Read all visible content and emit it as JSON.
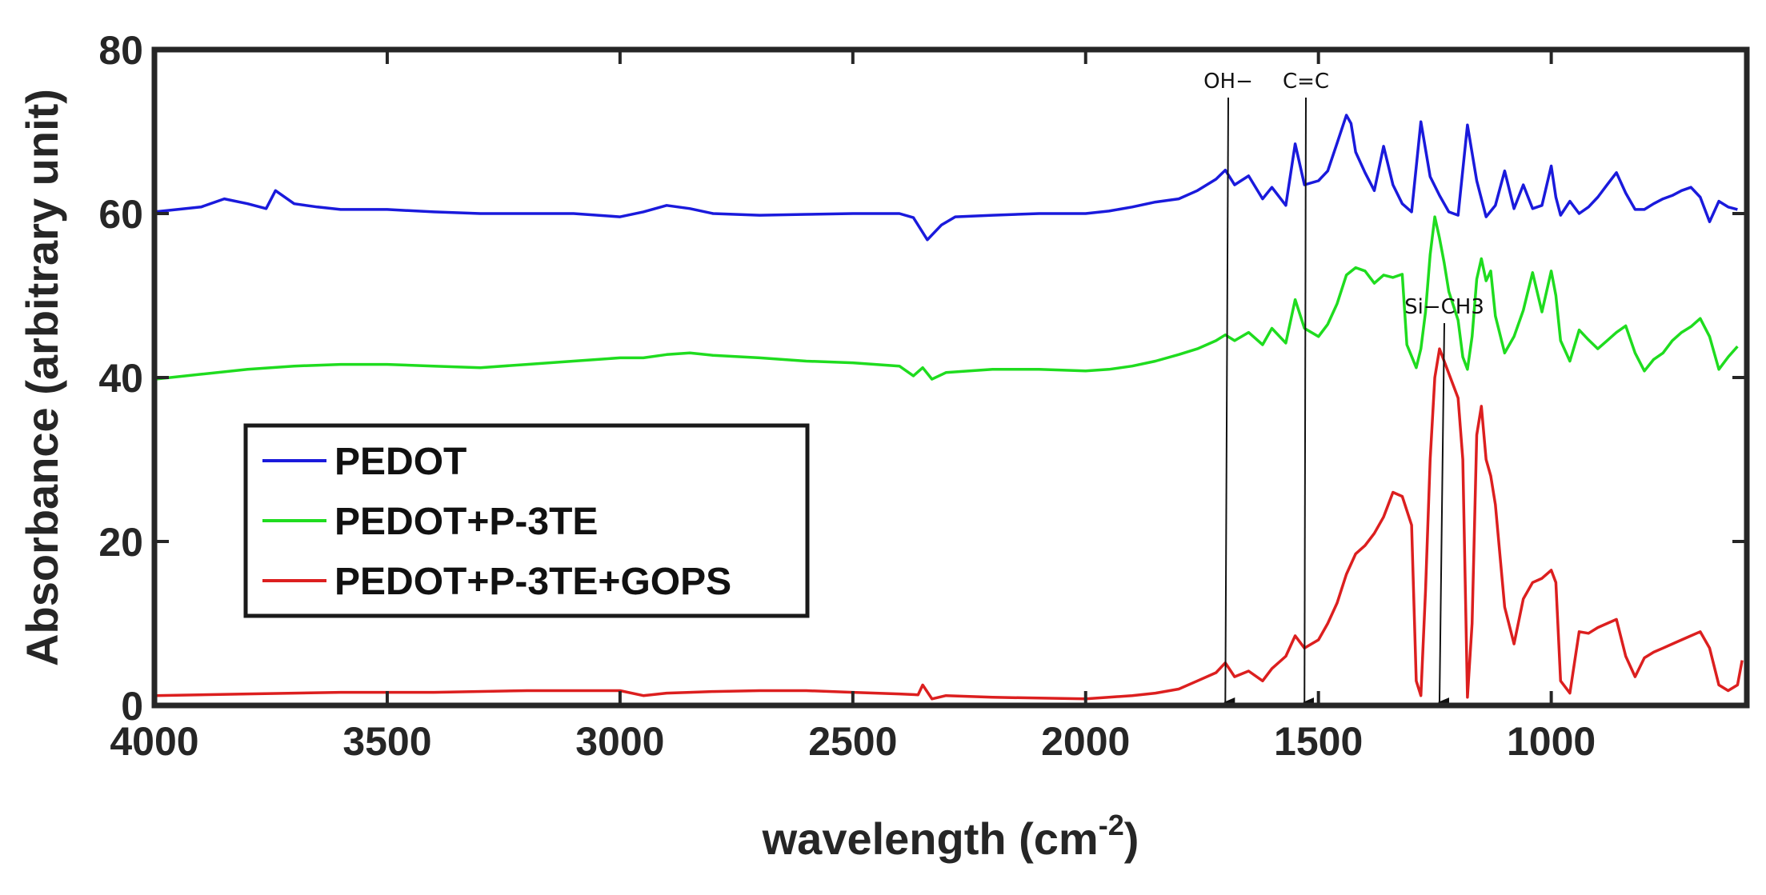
{
  "chart_data": {
    "type": "line",
    "title": "",
    "xlabel": {
      "main": "wavelength (cm",
      "sup": "-2",
      "close": ")"
    },
    "ylabel": "Absorbance (arbitrary unit)",
    "xlim": [
      4000,
      580
    ],
    "ylim": [
      0,
      80
    ],
    "x_reversed": true,
    "grid": false,
    "legend_position": "left",
    "x_ticks": [
      4000,
      3500,
      3000,
      2500,
      2000,
      1500,
      1000
    ],
    "x_tick_labels": [
      "4000",
      "3500",
      "3000",
      "2500",
      "2000",
      "1500",
      "1000"
    ],
    "y_ticks": [
      0,
      20,
      40,
      60,
      80
    ],
    "y_tick_labels": [
      "0",
      "20",
      "40",
      "60",
      "80"
    ],
    "series": [
      {
        "name": "PEDOT",
        "color": "#1a1adc",
        "x": [
          4000,
          3900,
          3850,
          3800,
          3760,
          3740,
          3700,
          3650,
          3600,
          3500,
          3400,
          3300,
          3200,
          3100,
          3000,
          2950,
          2900,
          2850,
          2800,
          2700,
          2600,
          2500,
          2400,
          2370,
          2340,
          2310,
          2280,
          2200,
          2100,
          2000,
          1950,
          1900,
          1850,
          1800,
          1760,
          1720,
          1700,
          1680,
          1650,
          1620,
          1600,
          1570,
          1550,
          1530,
          1500,
          1480,
          1460,
          1440,
          1430,
          1420,
          1400,
          1380,
          1360,
          1340,
          1320,
          1300,
          1280,
          1260,
          1240,
          1220,
          1200,
          1180,
          1160,
          1140,
          1120,
          1100,
          1080,
          1060,
          1040,
          1020,
          1000,
          990,
          980,
          960,
          940,
          920,
          900,
          880,
          860,
          840,
          820,
          800,
          780,
          760,
          740,
          720,
          700,
          680,
          660,
          640,
          620,
          600
        ],
        "y": [
          60.2,
          60.8,
          61.8,
          61.2,
          60.6,
          62.8,
          61.2,
          60.8,
          60.5,
          60.5,
          60.2,
          60.0,
          60.0,
          60.0,
          59.6,
          60.2,
          61.0,
          60.6,
          60.0,
          59.8,
          59.9,
          60.0,
          60.0,
          59.5,
          56.8,
          58.6,
          59.6,
          59.8,
          60.0,
          60.0,
          60.3,
          60.8,
          61.4,
          61.8,
          62.8,
          64.2,
          65.3,
          63.5,
          64.6,
          61.8,
          63.2,
          61.0,
          68.5,
          63.5,
          64.0,
          65.2,
          68.6,
          72.0,
          71.0,
          67.5,
          65.0,
          62.8,
          68.2,
          63.5,
          61.2,
          60.2,
          71.2,
          64.5,
          62.2,
          60.2,
          59.8,
          70.8,
          64.0,
          59.6,
          61.0,
          65.2,
          60.6,
          63.5,
          60.6,
          61.0,
          65.8,
          62.0,
          59.8,
          61.5,
          60.0,
          60.8,
          62.0,
          63.5,
          65.0,
          62.5,
          60.5,
          60.5,
          61.2,
          61.8,
          62.2,
          62.8,
          63.2,
          62.0,
          59.0,
          61.5,
          60.8,
          60.5
        ]
      },
      {
        "name": "PEDOT+P-3TE",
        "color": "#1fdc1f",
        "x": [
          4000,
          3900,
          3800,
          3700,
          3600,
          3500,
          3400,
          3300,
          3200,
          3100,
          3000,
          2950,
          2900,
          2850,
          2800,
          2700,
          2600,
          2500,
          2400,
          2370,
          2350,
          2330,
          2300,
          2200,
          2100,
          2000,
          1950,
          1900,
          1850,
          1800,
          1760,
          1720,
          1700,
          1680,
          1650,
          1620,
          1600,
          1570,
          1550,
          1530,
          1500,
          1480,
          1460,
          1440,
          1420,
          1400,
          1380,
          1360,
          1340,
          1320,
          1310,
          1290,
          1280,
          1270,
          1260,
          1250,
          1240,
          1230,
          1220,
          1200,
          1190,
          1180,
          1170,
          1160,
          1150,
          1140,
          1130,
          1120,
          1100,
          1080,
          1060,
          1040,
          1020,
          1000,
          990,
          980,
          960,
          940,
          920,
          900,
          880,
          860,
          840,
          820,
          800,
          780,
          760,
          740,
          720,
          700,
          680,
          660,
          640,
          620,
          600
        ],
        "y": [
          39.8,
          40.4,
          41.0,
          41.4,
          41.6,
          41.6,
          41.4,
          41.2,
          41.6,
          42.0,
          42.4,
          42.4,
          42.8,
          43.0,
          42.7,
          42.4,
          42.0,
          41.8,
          41.4,
          40.2,
          41.2,
          39.8,
          40.6,
          41.0,
          41.0,
          40.8,
          41.0,
          41.4,
          42.0,
          42.8,
          43.5,
          44.5,
          45.2,
          44.5,
          45.5,
          44.0,
          46.0,
          44.2,
          49.5,
          46.0,
          45.0,
          46.5,
          49.0,
          52.5,
          53.4,
          53.0,
          51.5,
          52.5,
          52.2,
          52.6,
          44.0,
          41.2,
          43.5,
          48.0,
          55.0,
          59.6,
          57.0,
          54.0,
          50.5,
          47.0,
          42.5,
          41.0,
          45.0,
          52.0,
          54.5,
          51.8,
          53.0,
          47.5,
          43.0,
          45.0,
          48.2,
          52.8,
          48.0,
          53.0,
          50.0,
          44.5,
          42.0,
          45.8,
          44.6,
          43.5,
          44.5,
          45.5,
          46.3,
          43.0,
          40.8,
          42.2,
          43.0,
          44.5,
          45.5,
          46.2,
          47.2,
          45.0,
          41.0,
          42.5,
          43.8
        ]
      },
      {
        "name": "PEDOT+P-3TE+GOPS",
        "color": "#dc1f1f",
        "x": [
          4000,
          3800,
          3600,
          3400,
          3200,
          3000,
          2950,
          2900,
          2850,
          2800,
          2700,
          2600,
          2500,
          2400,
          2360,
          2350,
          2330,
          2300,
          2200,
          2100,
          2000,
          1950,
          1900,
          1850,
          1800,
          1760,
          1720,
          1700,
          1680,
          1650,
          1620,
          1600,
          1570,
          1550,
          1530,
          1500,
          1480,
          1460,
          1440,
          1420,
          1400,
          1380,
          1360,
          1340,
          1320,
          1300,
          1290,
          1280,
          1270,
          1260,
          1250,
          1240,
          1230,
          1220,
          1210,
          1200,
          1190,
          1180,
          1170,
          1160,
          1150,
          1140,
          1130,
          1120,
          1100,
          1080,
          1060,
          1040,
          1020,
          1000,
          990,
          980,
          960,
          940,
          920,
          900,
          880,
          860,
          840,
          820,
          800,
          780,
          760,
          740,
          720,
          700,
          680,
          660,
          640,
          620,
          600,
          590
        ],
        "y": [
          1.2,
          1.4,
          1.6,
          1.6,
          1.8,
          1.8,
          1.2,
          1.5,
          1.6,
          1.7,
          1.8,
          1.8,
          1.6,
          1.4,
          1.3,
          2.5,
          0.8,
          1.2,
          1.0,
          0.9,
          0.8,
          1.0,
          1.2,
          1.5,
          2.0,
          3.0,
          4.0,
          5.2,
          3.5,
          4.2,
          3.0,
          4.5,
          6.0,
          8.5,
          7.0,
          8.0,
          10.0,
          12.5,
          16.0,
          18.5,
          19.5,
          21.0,
          23.0,
          26.0,
          25.5,
          22.0,
          3.0,
          1.2,
          14.0,
          30.0,
          40.0,
          43.5,
          42.0,
          40.5,
          39.0,
          37.5,
          30.0,
          1.0,
          10.0,
          33.0,
          36.5,
          30.0,
          28.0,
          24.5,
          12.0,
          7.5,
          13.0,
          15.0,
          15.5,
          16.5,
          15.0,
          3.0,
          1.5,
          9.0,
          8.8,
          9.5,
          10.0,
          10.5,
          6.0,
          3.5,
          5.8,
          6.5,
          7.0,
          7.5,
          8.0,
          8.5,
          9.0,
          7.0,
          2.5,
          1.8,
          2.5,
          5.5
        ]
      }
    ],
    "annotations": [
      {
        "text": "OH−",
        "x": 1700,
        "y": 0
      },
      {
        "text": "C=C",
        "x": 1530,
        "y": 0
      },
      {
        "text": "Si−CH3",
        "x": 1240,
        "y": 0
      }
    ]
  }
}
